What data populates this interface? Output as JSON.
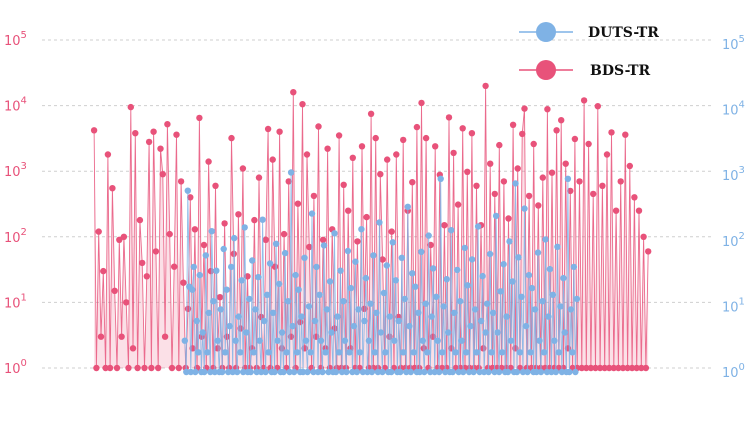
{
  "chart_data": {
    "type": "line",
    "title": "",
    "xlabel": "",
    "y_scale": "log",
    "grid": true,
    "legend_placement": "top-right",
    "left_axis": {
      "color": "#e8527a",
      "ylim": [
        1,
        100000
      ],
      "ticks": [
        {
          "value": 1,
          "mantissa": "10",
          "exp": "0"
        },
        {
          "value": 10,
          "mantissa": "10",
          "exp": "1"
        },
        {
          "value": 100,
          "mantissa": "10",
          "exp": "2"
        },
        {
          "value": 1000,
          "mantissa": "10",
          "exp": "3"
        },
        {
          "value": 10000,
          "mantissa": "10",
          "exp": "4"
        },
        {
          "value": 100000,
          "mantissa": "10",
          "exp": "5"
        }
      ]
    },
    "right_axis": {
      "color": "#7fb2e5",
      "ylim": [
        1,
        100000
      ],
      "ticks": [
        {
          "value": 1,
          "mantissa": "10",
          "exp": "0"
        },
        {
          "value": 10,
          "mantissa": "10",
          "exp": "1"
        },
        {
          "value": 100,
          "mantissa": "10",
          "exp": "2"
        },
        {
          "value": 1000,
          "mantissa": "10",
          "exp": "3"
        },
        {
          "value": 10000,
          "mantissa": "10",
          "exp": "4"
        },
        {
          "value": 100000,
          "mantissa": "10",
          "exp": "5"
        }
      ]
    },
    "series": [
      {
        "name": "DUTS-TR",
        "color": "#7fb2e5",
        "axis": "right",
        "x_range": [
          0.205,
          0.81
        ],
        "values": [
          3,
          1,
          580,
          20,
          1,
          18,
          40,
          1,
          6,
          2,
          30,
          1,
          4,
          1,
          60,
          2,
          8,
          1,
          140,
          12,
          1,
          35,
          3,
          1,
          9,
          1,
          75,
          2,
          18,
          1,
          5,
          40,
          1,
          110,
          3,
          1,
          7,
          2,
          25,
          1,
          160,
          4,
          1,
          13,
          1,
          50,
          2,
          9,
          1,
          28,
          3,
          1,
          210,
          6,
          1,
          15,
          2,
          45,
          1,
          8,
          1,
          90,
          3,
          22,
          1,
          4,
          1,
          65,
          2,
          12,
          1,
          1100,
          5,
          1,
          30,
          2,
          18,
          1,
          7,
          1,
          55,
          3,
          1,
          10,
          2,
          260,
          1,
          6,
          40,
          1,
          15,
          3,
          1,
          85,
          2,
          9,
          1,
          24,
          4,
          1,
          130,
          1,
          7,
          2,
          35,
          1,
          12,
          3,
          1,
          70,
          2,
          19,
          1,
          5,
          48,
          1,
          9,
          2,
          150,
          1,
          6,
          27,
          1,
          3,
          11,
          1,
          60,
          2,
          8,
          1,
          190,
          4,
          1,
          16,
          2,
          42,
          1,
          7,
          1,
          95,
          3,
          25,
          1,
          6,
          1,
          55,
          2,
          13,
          1,
          330,
          5,
          1,
          32,
          2,
          20,
          1,
          8,
          1,
          68,
          3,
          1,
          11,
          2,
          120,
          1,
          7,
          38,
          1,
          14,
          3,
          1,
          880,
          2,
          10,
          1,
          26,
          4,
          1,
          145,
          1,
          8,
          2,
          36,
          1,
          12,
          3,
          1,
          78,
          2,
          21,
          1,
          5,
          52,
          1,
          9,
          2,
          165,
          1,
          6,
          29,
          1,
          4,
          11,
          1,
          63,
          2,
          8,
          1,
          240,
          4,
          1,
          17,
          2,
          44,
          1,
          7,
          1,
          98,
          3,
          24,
          1,
          750,
          1,
          56,
          2,
          14,
          1,
          310,
          5,
          1,
          30,
          2,
          19,
          1,
          9,
          1,
          66,
          3,
          1,
          12,
          2,
          105,
          1,
          7,
          37,
          1,
          15,
          3,
          1,
          81,
          2,
          10,
          1,
          27,
          4,
          1,
          880,
          1,
          9,
          2,
          40,
          1,
          13
        ]
      },
      {
        "name": "BDS-TR",
        "color": "#e8527a",
        "axis": "left",
        "x_range": [
          0.065,
          0.92
        ],
        "values": [
          4200,
          1,
          120,
          3,
          30,
          1,
          1800,
          1,
          550,
          15,
          1,
          90,
          3,
          100,
          10,
          1,
          9500,
          2,
          3800,
          1,
          180,
          40,
          1,
          25,
          2800,
          1,
          4000,
          60,
          1,
          2200,
          900,
          3,
          5200,
          110,
          1,
          35,
          3600,
          1,
          700,
          20,
          1,
          8,
          400,
          2,
          130,
          1,
          6500,
          3,
          75,
          1,
          1400,
          30,
          1,
          600,
          2,
          12,
          1,
          160,
          3,
          1,
          3200,
          55,
          1,
          220,
          4,
          1100,
          1,
          25,
          1,
          2,
          180,
          1,
          800,
          6,
          1,
          90,
          4400,
          1,
          1500,
          35,
          1,
          4000,
          2,
          110,
          1,
          700,
          3,
          16000,
          1,
          320,
          5,
          10500,
          2,
          1800,
          70,
          1,
          420,
          3,
          4800,
          1,
          90,
          2,
          2200,
          1,
          130,
          4,
          1,
          3500,
          1,
          620,
          1,
          250,
          2,
          1600,
          1,
          85,
          1,
          2400,
          8,
          200,
          1,
          7500,
          1,
          3200,
          1,
          900,
          45,
          1,
          1500,
          3,
          120,
          1,
          1800,
          6,
          1,
          3000,
          1,
          250,
          1,
          680,
          1,
          4700,
          1,
          11000,
          2,
          3200,
          1,
          75,
          3,
          2400,
          1,
          880,
          1,
          150,
          1,
          6600,
          2,
          1900,
          1,
          310,
          1,
          4500,
          1,
          980,
          1,
          3800,
          1,
          600,
          1,
          150,
          2,
          20000,
          1,
          1300,
          1,
          450,
          1,
          2500,
          1,
          700,
          1,
          190,
          1,
          5100,
          2,
          1100,
          1,
          3700,
          9000,
          1,
          420,
          1,
          2600,
          1,
          300,
          1,
          800,
          1,
          8800,
          1,
          950,
          1,
          4200,
          1,
          6000,
          1,
          1300,
          2,
          500,
          1,
          3100,
          1,
          700,
          1,
          12000,
          1,
          2600,
          1,
          450,
          1,
          9800,
          1,
          600,
          1,
          1800,
          1,
          3900,
          1,
          250,
          1,
          700,
          1,
          3600,
          1,
          1200,
          1,
          400,
          1,
          250,
          1,
          100,
          1,
          60
        ]
      }
    ],
    "legend": [
      {
        "name": "DUTS-TR",
        "color": "#7fb2e5"
      },
      {
        "name": "BDS-TR",
        "color": "#e8527a"
      }
    ]
  }
}
